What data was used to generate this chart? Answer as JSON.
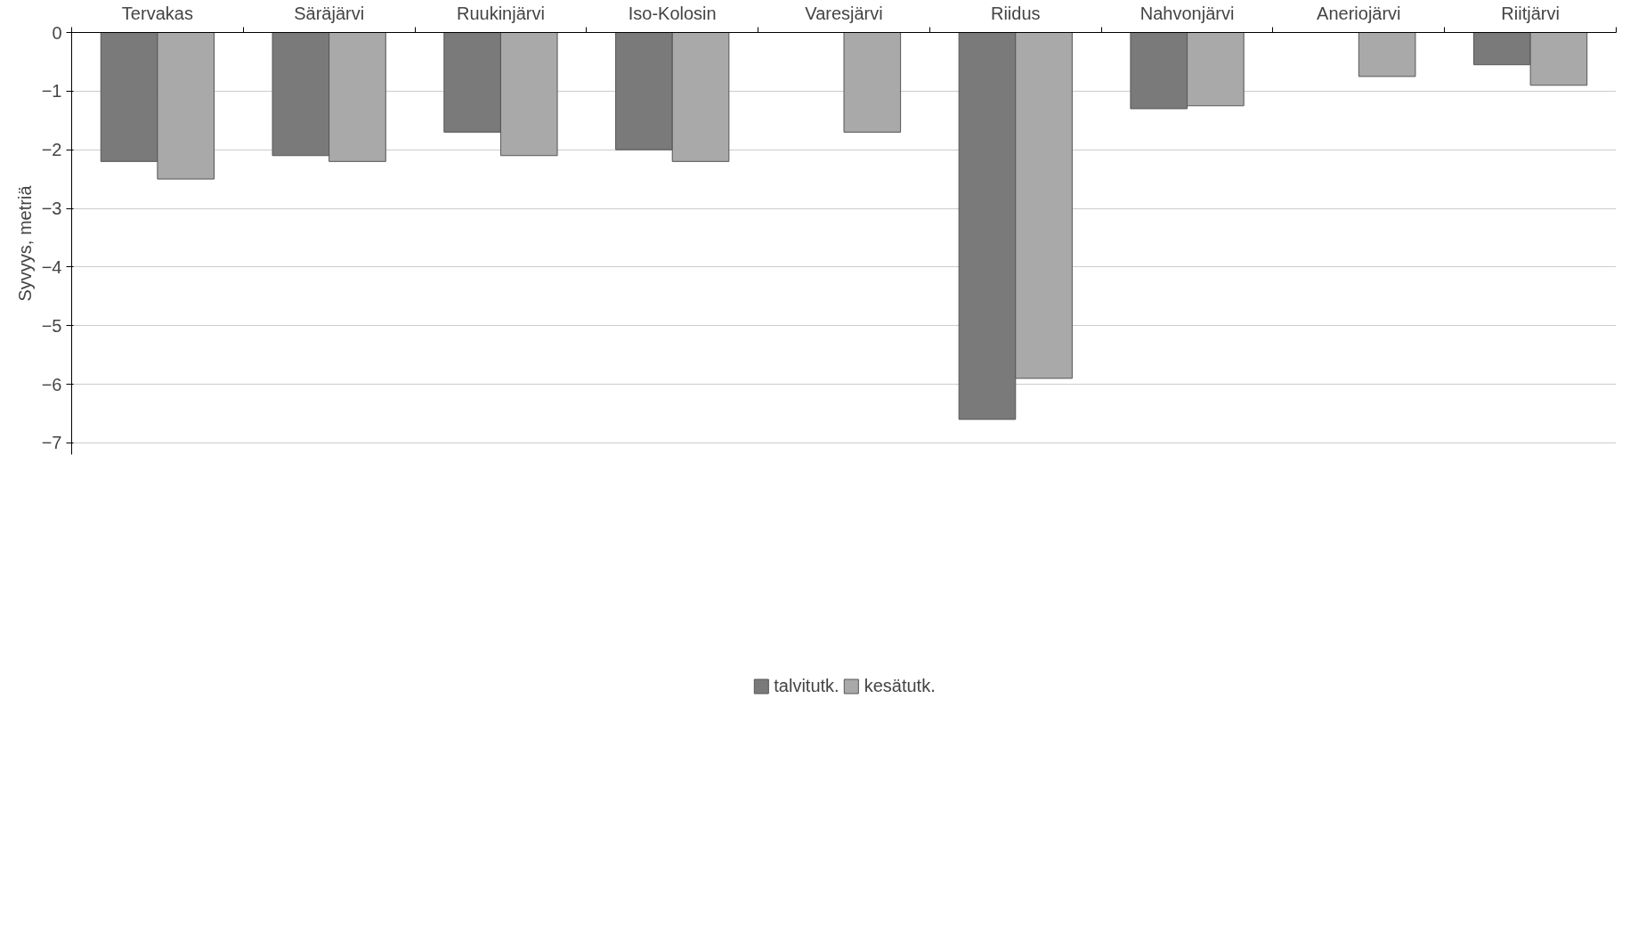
{
  "chart_data": {
    "type": "bar",
    "ylabel": "Syvyys, metriä",
    "categories": [
      "Tervakas",
      "Säräjärvi",
      "Ruukinjärvi",
      "Iso-Kolosin",
      "Varesjärvi",
      "Riidus",
      "Nahvonjärvi",
      "Aneriojärvi",
      "Riitjärvi"
    ],
    "series": [
      {
        "name": "talvitutk.",
        "color": "#7a7a7a",
        "values": [
          -2.2,
          -2.1,
          -1.7,
          -2.0,
          null,
          -6.6,
          -1.3,
          null,
          -0.55
        ]
      },
      {
        "name": "kesätutk.",
        "color": "#a9a9a9",
        "values": [
          -2.5,
          -2.2,
          -2.1,
          -2.2,
          -1.7,
          -5.9,
          -1.25,
          -0.75,
          -0.9
        ]
      }
    ],
    "ylim": [
      -7.2,
      0
    ],
    "yticks": [
      0,
      -1,
      -2,
      -3,
      -4,
      -5,
      -6,
      -7
    ],
    "grid": "y",
    "legend": "bottom"
  }
}
